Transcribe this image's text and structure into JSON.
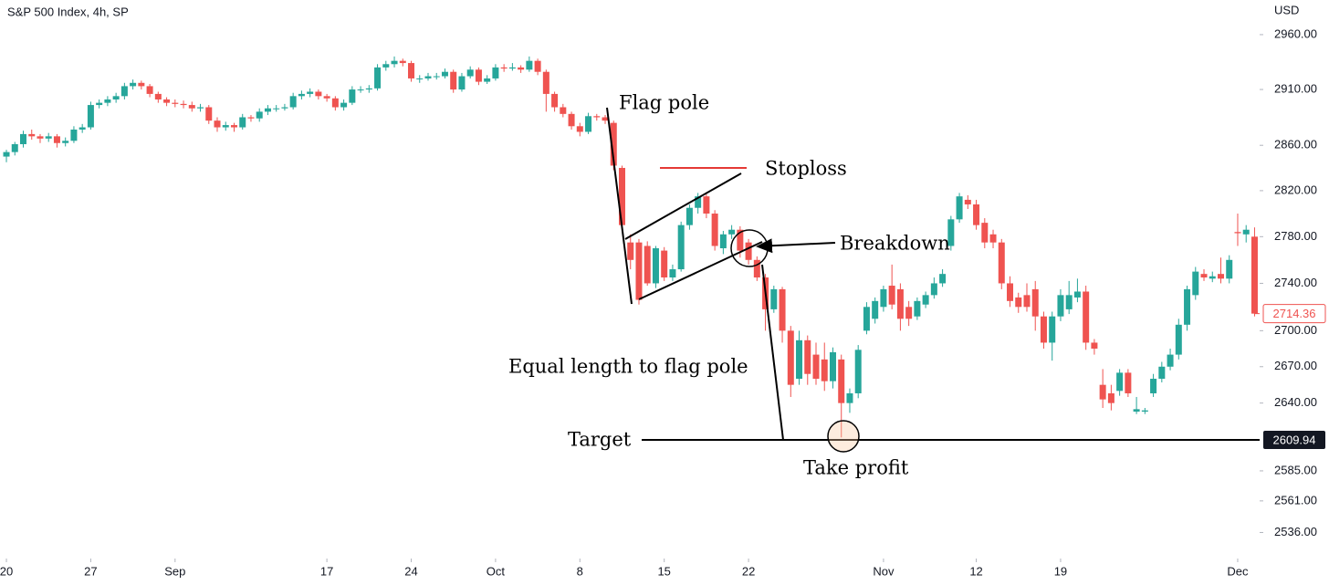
{
  "chart_data": {
    "type": "candlestick",
    "title": "S&P 500 Index, 4h, SP",
    "y_label": "USD",
    "log": true,
    "up_color": "#26a69a",
    "down_color": "#ef5350",
    "xlim": [
      -0.76,
      148.6
    ],
    "ylim": [
      2517,
      2992
    ],
    "xticks": [
      {
        "value": 0,
        "label": "20"
      },
      {
        "value": 10,
        "label": "27"
      },
      {
        "value": 20,
        "label": "Sep"
      },
      {
        "value": 38,
        "label": "17"
      },
      {
        "value": 48,
        "label": "24"
      },
      {
        "value": 58,
        "label": "Oct"
      },
      {
        "value": 68,
        "label": "8"
      },
      {
        "value": 78,
        "label": "15"
      },
      {
        "value": 88,
        "label": "22"
      },
      {
        "value": 104,
        "label": "Nov"
      },
      {
        "value": 115,
        "label": "12"
      },
      {
        "value": 125,
        "label": "19"
      },
      {
        "value": 146,
        "label": "Dec"
      }
    ],
    "yticks": [
      {
        "value": 2960,
        "label": "2960.00"
      },
      {
        "value": 2910,
        "label": "2910.00"
      },
      {
        "value": 2860,
        "label": "2860.00"
      },
      {
        "value": 2820,
        "label": "2820.00"
      },
      {
        "value": 2780,
        "label": "2780.00"
      },
      {
        "value": 2740,
        "label": "2740.00"
      },
      {
        "value": 2700,
        "label": "2700.00"
      },
      {
        "value": 2670,
        "label": "2670.00"
      },
      {
        "value": 2640,
        "label": "2640.00"
      },
      {
        "value": 2585,
        "label": "2585.00"
      },
      {
        "value": 2561,
        "label": "2561.00"
      },
      {
        "value": 2536,
        "label": "2536.00"
      }
    ],
    "last_price": 2714.36,
    "target": {
      "label": "Target",
      "value": 2609.94
    },
    "annotations": [
      "Flag pole",
      "Stoploss",
      "Breakdown",
      "Equal length to flag pole",
      "Take profit"
    ],
    "values": [
      [
        2850,
        2856,
        2845,
        2854
      ],
      [
        2854,
        2863,
        2851,
        2861
      ],
      [
        2861,
        2873,
        2858,
        2870
      ],
      [
        2870,
        2874,
        2865,
        2868
      ],
      [
        2868,
        2870,
        2862,
        2866
      ],
      [
        2866,
        2871,
        2863,
        2868
      ],
      [
        2868,
        2870,
        2858,
        2862
      ],
      [
        2862,
        2867,
        2859,
        2864
      ],
      [
        2864,
        2877,
        2862,
        2874
      ],
      [
        2874,
        2879,
        2871,
        2876
      ],
      [
        2876,
        2899,
        2874,
        2896
      ],
      [
        2896,
        2901,
        2893,
        2898
      ],
      [
        2898,
        2904,
        2895,
        2901
      ],
      [
        2901,
        2907,
        2898,
        2904
      ],
      [
        2904,
        2916,
        2901,
        2913
      ],
      [
        2913,
        2919,
        2910,
        2916
      ],
      [
        2916,
        2918,
        2910,
        2913
      ],
      [
        2913,
        2915,
        2903,
        2906
      ],
      [
        2906,
        2908,
        2898,
        2901
      ],
      [
        2901,
        2903,
        2895,
        2898
      ],
      [
        2898,
        2901,
        2894,
        2897
      ],
      [
        2897,
        2900,
        2893,
        2896
      ],
      [
        2896,
        2899,
        2890,
        2893
      ],
      [
        2893,
        2897,
        2890,
        2894
      ],
      [
        2894,
        2896,
        2879,
        2882
      ],
      [
        2882,
        2885,
        2872,
        2876
      ],
      [
        2876,
        2881,
        2873,
        2878
      ],
      [
        2878,
        2880,
        2872,
        2876
      ],
      [
        2876,
        2888,
        2874,
        2885
      ],
      [
        2885,
        2887,
        2881,
        2884
      ],
      [
        2884,
        2893,
        2881,
        2890
      ],
      [
        2890,
        2896,
        2887,
        2893
      ],
      [
        2893,
        2896,
        2890,
        2893
      ],
      [
        2893,
        2897,
        2891,
        2894
      ],
      [
        2894,
        2907,
        2892,
        2904
      ],
      [
        2904,
        2909,
        2901,
        2906
      ],
      [
        2906,
        2911,
        2903,
        2908
      ],
      [
        2908,
        2910,
        2901,
        2904
      ],
      [
        2904,
        2906,
        2899,
        2902
      ],
      [
        2902,
        2904,
        2891,
        2894
      ],
      [
        2894,
        2901,
        2891,
        2898
      ],
      [
        2898,
        2913,
        2896,
        2910
      ],
      [
        2910,
        2913,
        2907,
        2910
      ],
      [
        2910,
        2914,
        2907,
        2911
      ],
      [
        2911,
        2933,
        2909,
        2930
      ],
      [
        2930,
        2936,
        2927,
        2933
      ],
      [
        2933,
        2940,
        2930,
        2936
      ],
      [
        2936,
        2938,
        2931,
        2934
      ],
      [
        2934,
        2936,
        2917,
        2920
      ],
      [
        2920,
        2923,
        2916,
        2920
      ],
      [
        2920,
        2925,
        2918,
        2922
      ],
      [
        2922,
        2925,
        2919,
        2922
      ],
      [
        2922,
        2929,
        2920,
        2926
      ],
      [
        2926,
        2928,
        2907,
        2910
      ],
      [
        2910,
        2925,
        2908,
        2922
      ],
      [
        2922,
        2931,
        2920,
        2928
      ],
      [
        2928,
        2930,
        2914,
        2917
      ],
      [
        2917,
        2923,
        2915,
        2920
      ],
      [
        2920,
        2933,
        2918,
        2930
      ],
      [
        2930,
        2933,
        2926,
        2929
      ],
      [
        2929,
        2934,
        2927,
        2930
      ],
      [
        2930,
        2932,
        2925,
        2928
      ],
      [
        2928,
        2940,
        2926,
        2936
      ],
      [
        2936,
        2938,
        2923,
        2926
      ],
      [
        2926,
        2928,
        2890,
        2906
      ],
      [
        2906,
        2908,
        2890,
        2894
      ],
      [
        2894,
        2897,
        2885,
        2888
      ],
      [
        2888,
        2890,
        2874,
        2877
      ],
      [
        2877,
        2880,
        2868,
        2872
      ],
      [
        2872,
        2889,
        2870,
        2886
      ],
      [
        2886,
        2888,
        2882,
        2885
      ],
      [
        2885,
        2887,
        2879,
        2882
      ],
      [
        2880,
        2882,
        2838,
        2842
      ],
      [
        2840,
        2842,
        2786,
        2790
      ],
      [
        2775,
        2782,
        2752,
        2760
      ],
      [
        2775,
        2778,
        2722,
        2726
      ],
      [
        2772,
        2776,
        2738,
        2740
      ],
      [
        2740,
        2772,
        2736,
        2770
      ],
      [
        2768,
        2771,
        2742,
        2745
      ],
      [
        2745,
        2756,
        2742,
        2752
      ],
      [
        2752,
        2793,
        2750,
        2790
      ],
      [
        2790,
        2808,
        2786,
        2805
      ],
      [
        2805,
        2818,
        2800,
        2815
      ],
      [
        2815,
        2817,
        2796,
        2800
      ],
      [
        2800,
        2803,
        2768,
        2772
      ],
      [
        2770,
        2785,
        2765,
        2782
      ],
      [
        2782,
        2790,
        2778,
        2786
      ],
      [
        2786,
        2789,
        2762,
        2768
      ],
      [
        2775,
        2778,
        2756,
        2760
      ],
      [
        2760,
        2763,
        2742,
        2745
      ],
      [
        2745,
        2748,
        2700,
        2718
      ],
      [
        2718,
        2738,
        2715,
        2735
      ],
      [
        2735,
        2737,
        2690,
        2700
      ],
      [
        2700,
        2704,
        2645,
        2655
      ],
      [
        2660,
        2700,
        2655,
        2692
      ],
      [
        2692,
        2696,
        2655,
        2664
      ],
      [
        2680,
        2690,
        2655,
        2660
      ],
      [
        2676,
        2690,
        2650,
        2658
      ],
      [
        2658,
        2686,
        2652,
        2682
      ],
      [
        2676,
        2680,
        2612,
        2640
      ],
      [
        2640,
        2652,
        2632,
        2648
      ],
      [
        2648,
        2688,
        2644,
        2684
      ],
      [
        2700,
        2724,
        2697,
        2720
      ],
      [
        2710,
        2728,
        2706,
        2725
      ],
      [
        2720,
        2738,
        2716,
        2735
      ],
      [
        2738,
        2756,
        2718,
        2722
      ],
      [
        2735,
        2740,
        2700,
        2710
      ],
      [
        2720,
        2725,
        2704,
        2710
      ],
      [
        2712,
        2728,
        2709,
        2725
      ],
      [
        2722,
        2733,
        2719,
        2730
      ],
      [
        2730,
        2745,
        2727,
        2740
      ],
      [
        2740,
        2752,
        2737,
        2748
      ],
      [
        2772,
        2798,
        2768,
        2795
      ],
      [
        2795,
        2818,
        2792,
        2815
      ],
      [
        2812,
        2816,
        2804,
        2808
      ],
      [
        2808,
        2812,
        2786,
        2790
      ],
      [
        2792,
        2796,
        2770,
        2775
      ],
      [
        2782,
        2786,
        2770,
        2775
      ],
      [
        2775,
        2778,
        2735,
        2740
      ],
      [
        2740,
        2746,
        2720,
        2725
      ],
      [
        2728,
        2732,
        2715,
        2720
      ],
      [
        2730,
        2740,
        2716,
        2720
      ],
      [
        2735,
        2742,
        2700,
        2712
      ],
      [
        2712,
        2716,
        2685,
        2690
      ],
      [
        2690,
        2716,
        2675,
        2712
      ],
      [
        2712,
        2735,
        2708,
        2730
      ],
      [
        2718,
        2742,
        2714,
        2730
      ],
      [
        2728,
        2744,
        2724,
        2733
      ],
      [
        2733,
        2738,
        2684,
        2690
      ],
      [
        2690,
        2693,
        2680,
        2685
      ],
      [
        2655,
        2668,
        2636,
        2643
      ],
      [
        2648,
        2655,
        2634,
        2640
      ],
      [
        2650,
        2668,
        2646,
        2665
      ],
      [
        2665,
        2668,
        2645,
        2648
      ],
      [
        2633,
        2645,
        2631,
        2635
      ],
      [
        2633,
        2636,
        2631,
        2634
      ],
      [
        2648,
        2664,
        2645,
        2660
      ],
      [
        2660,
        2674,
        2657,
        2670
      ],
      [
        2670,
        2685,
        2667,
        2680
      ],
      [
        2680,
        2710,
        2676,
        2705
      ],
      [
        2705,
        2738,
        2700,
        2735
      ],
      [
        2730,
        2754,
        2726,
        2750
      ],
      [
        2748,
        2752,
        2742,
        2745
      ],
      [
        2744,
        2750,
        2741,
        2746
      ],
      [
        2748,
        2762,
        2740,
        2744
      ],
      [
        2744,
        2764,
        2740,
        2760
      ],
      [
        2784,
        2800,
        2772,
        2783
      ],
      [
        2782,
        2790,
        2775,
        2786
      ],
      [
        2780,
        2788,
        2712,
        2714.36
      ]
    ]
  }
}
